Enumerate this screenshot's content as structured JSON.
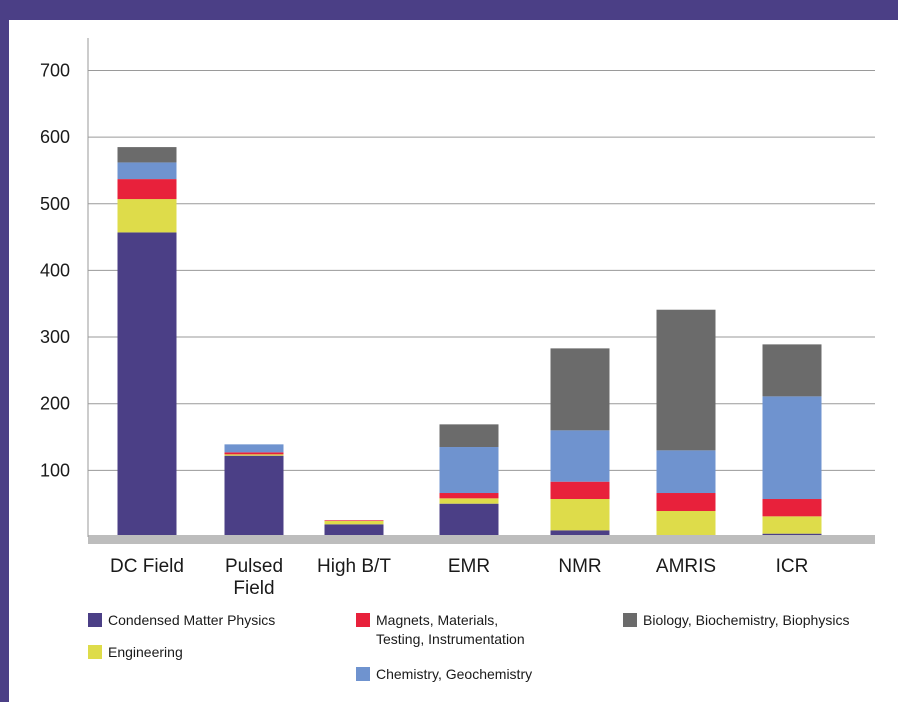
{
  "chart_data": {
    "type": "bar",
    "stacked": true,
    "categories": [
      [
        "DC Field"
      ],
      [
        "Pulsed",
        "Field"
      ],
      [
        "High B/T"
      ],
      [
        "EMR"
      ],
      [
        "NMR"
      ],
      [
        "AMRIS"
      ],
      [
        "ICR"
      ]
    ],
    "yticks": [
      100,
      200,
      300,
      400,
      500,
      600,
      700
    ],
    "ylim": [
      0,
      750
    ],
    "grid": true,
    "legend_position": "bottom",
    "series": [
      {
        "name": "Condensed Matter Physics",
        "color": "#4b3f86",
        "values": [
          457,
          122,
          19,
          50,
          10,
          3,
          5
        ]
      },
      {
        "name": "Engineering",
        "color": "#dedc4a",
        "values": [
          50,
          2,
          5,
          8,
          47,
          36,
          26
        ]
      },
      {
        "name": "Magnets, Materials, Testing, Instrumentation",
        "color": "#e8213b",
        "values": [
          30,
          3,
          1,
          8,
          26,
          27,
          26
        ]
      },
      {
        "name": "Chemistry, Geochemistry",
        "color": "#6f93cf",
        "values": [
          25,
          12,
          0,
          69,
          77,
          64,
          154
        ]
      },
      {
        "name": "Biology, Biochemistry, Biophysics",
        "color": "#6b6b6b",
        "values": [
          23,
          0,
          0,
          34,
          123,
          211,
          78
        ]
      }
    ],
    "legend": [
      {
        "lines": [
          "Condensed Matter Physics"
        ],
        "color": "#4b3f86"
      },
      {
        "lines": [
          "Engineering"
        ],
        "color": "#dedc4a"
      },
      {
        "lines": [
          "Magnets, Materials,",
          "Testing, Instrumentation"
        ],
        "color": "#e8213b"
      },
      {
        "lines": [
          "Chemistry, Geochemistry"
        ],
        "color": "#6f93cf"
      },
      {
        "lines": [
          "Biology, Biochemistry, Biophysics"
        ],
        "color": "#6b6b6b"
      }
    ]
  }
}
